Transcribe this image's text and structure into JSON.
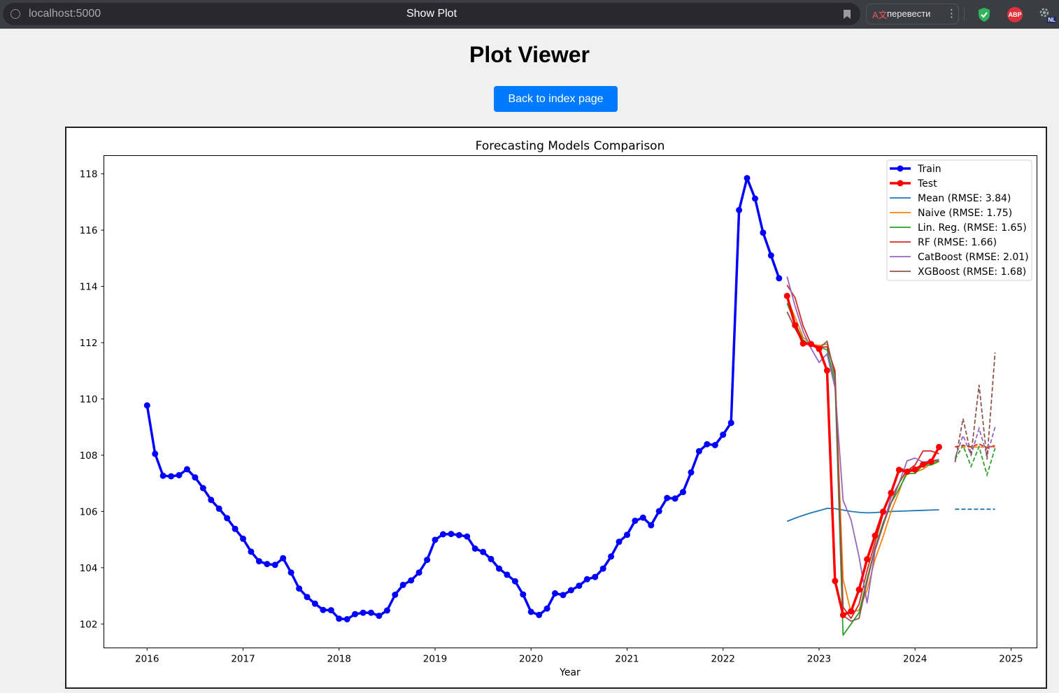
{
  "browser": {
    "url": "localhost:5000",
    "tab_title": "Show Plot",
    "translate_label": "перевести",
    "abp_label": "ABP",
    "ext_label": "NL"
  },
  "page": {
    "title": "Plot Viewer",
    "back_button": "Back to index page"
  },
  "chart_data": {
    "type": "line",
    "title": "Forecasting Models Comparison",
    "xlabel": "Year",
    "ylabel": "",
    "xlim": [
      2015.55,
      2025.27
    ],
    "ylim": [
      101.15,
      118.65
    ],
    "x_ticks": [
      2016,
      2017,
      2018,
      2019,
      2020,
      2021,
      2022,
      2023,
      2024,
      2025
    ],
    "y_ticks": [
      102,
      104,
      106,
      108,
      110,
      112,
      114,
      116,
      118
    ],
    "legend_position": "top-right",
    "grid": false,
    "series": [
      {
        "name": "Train",
        "color": "#0000ff",
        "style": "solid",
        "marker": "circle",
        "width": 3.5,
        "x_start": 2016.0,
        "x_step": 0.0833333,
        "values": [
          109.77,
          108.05,
          107.27,
          107.25,
          107.29,
          107.5,
          107.21,
          106.83,
          106.41,
          106.1,
          105.76,
          105.38,
          105.03,
          104.57,
          104.23,
          104.13,
          104.1,
          104.34,
          103.83,
          103.26,
          102.96,
          102.72,
          102.5,
          102.49,
          102.19,
          102.17,
          102.35,
          102.4,
          102.4,
          102.29,
          102.48,
          103.04,
          103.39,
          103.55,
          103.83,
          104.28,
          104.99,
          105.19,
          105.2,
          105.16,
          105.11,
          104.68,
          104.56,
          104.31,
          103.97,
          103.75,
          103.52,
          103.05,
          102.43,
          102.32,
          102.55,
          103.09,
          103.03,
          103.2,
          103.36,
          103.59,
          103.67,
          103.97,
          104.4,
          104.92,
          105.17,
          105.67,
          105.78,
          105.51,
          106.01,
          106.48,
          106.46,
          106.69,
          107.39,
          108.14,
          108.39,
          108.36,
          108.73,
          109.15,
          116.71,
          117.85,
          117.12,
          115.91,
          115.1,
          114.29
        ]
      },
      {
        "name": "Test",
        "color": "#ff0000",
        "style": "solid",
        "marker": "circle",
        "width": 3.5,
        "x_start": 2022.6667,
        "x_step": 0.0833333,
        "values": [
          113.66,
          112.62,
          111.97,
          111.95,
          111.78,
          111.01,
          103.53,
          102.32,
          102.45,
          103.22,
          104.3,
          105.14,
          105.99,
          106.66,
          107.48,
          107.41,
          107.49,
          107.67,
          107.77,
          108.29
        ]
      },
      {
        "name": "Mean (RMSE: 3.84)",
        "color": "#1f77b4",
        "style": "solid",
        "marker": "none",
        "width": 1.8,
        "x_start": 2022.6667,
        "x_step": 0.0833333,
        "values": [
          105.65,
          105.76,
          105.86,
          105.95,
          106.03,
          106.11,
          106.1,
          106.05,
          106.0,
          105.97,
          105.95,
          105.96,
          105.98,
          106.0,
          106.01,
          106.02,
          106.03,
          106.04,
          106.05,
          106.06
        ]
      },
      {
        "name": "Naive (RMSE: 1.75)",
        "color": "#ff7f0e",
        "style": "solid",
        "marker": "none",
        "width": 1.8,
        "x_start": 2022.6667,
        "x_step": 0.0833333,
        "values": [
          113.6,
          112.9,
          112.2,
          111.95,
          111.9,
          111.95,
          110.9,
          103.6,
          102.4,
          102.5,
          103.2,
          104.3,
          105.1,
          106.0,
          106.7,
          107.5,
          107.4,
          107.5,
          107.7,
          107.8
        ]
      },
      {
        "name": "Lin. Reg. (RMSE: 1.65)",
        "color": "#2ca02c",
        "style": "solid",
        "marker": "none",
        "width": 1.8,
        "x_start": 2022.6667,
        "x_step": 0.0833333,
        "values": [
          113.4,
          112.7,
          112.1,
          111.9,
          111.85,
          111.75,
          110.6,
          101.6,
          102.0,
          102.4,
          103.6,
          104.7,
          105.6,
          106.3,
          106.8,
          107.35,
          107.35,
          107.65,
          107.65,
          107.78
        ]
      },
      {
        "name": "RF (RMSE: 1.66)",
        "color": "#d62728",
        "style": "solid",
        "marker": "none",
        "width": 1.8,
        "x_start": 2022.6667,
        "x_step": 0.0833333,
        "values": [
          114.05,
          113.6,
          112.6,
          111.95,
          111.85,
          111.85,
          111.0,
          102.6,
          102.2,
          102.7,
          103.9,
          104.9,
          105.9,
          106.7,
          107.55,
          107.45,
          107.65,
          108.15,
          108.15,
          108.05
        ]
      },
      {
        "name": "CatBoost (RMSE: 2.01)",
        "color": "#9467bd",
        "style": "solid",
        "marker": "none",
        "width": 1.8,
        "x_start": 2022.6667,
        "x_step": 0.0833333,
        "values": [
          114.35,
          113.3,
          112.4,
          111.8,
          111.3,
          111.6,
          110.4,
          106.4,
          105.7,
          104.4,
          102.75,
          104.6,
          105.5,
          106.5,
          107.0,
          107.8,
          107.9,
          107.75,
          107.8,
          107.85
        ]
      },
      {
        "name": "XGBoost (RMSE: 1.68)",
        "color": "#8c564b",
        "style": "solid",
        "marker": "none",
        "width": 1.8,
        "x_start": 2022.6667,
        "x_step": 0.0833333,
        "values": [
          113.1,
          112.5,
          112.0,
          111.9,
          111.8,
          112.05,
          110.8,
          102.3,
          102.1,
          102.2,
          103.5,
          104.7,
          105.5,
          106.3,
          107.0,
          107.5,
          107.5,
          107.7,
          107.8,
          107.8
        ]
      }
    ],
    "forecasts": [
      {
        "series": "Mean (RMSE: 3.84)",
        "color": "#1f77b4",
        "style": "dashed",
        "x_start": 2024.4167,
        "x_step": 0.0833333,
        "values": [
          106.08,
          106.08,
          106.08,
          106.08,
          106.08,
          106.08
        ]
      },
      {
        "series": "Naive (RMSE: 1.75)",
        "color": "#ff7f0e",
        "style": "dashed",
        "x_start": 2024.4167,
        "x_step": 0.0833333,
        "values": [
          108.29,
          108.29,
          108.29,
          108.29,
          108.29,
          108.29
        ]
      },
      {
        "series": "Lin. Reg. (RMSE: 1.65)",
        "color": "#2ca02c",
        "style": "dashed",
        "x_start": 2024.4167,
        "x_step": 0.0833333,
        "values": [
          107.85,
          108.35,
          107.6,
          108.3,
          107.3,
          108.25
        ]
      },
      {
        "series": "RF (RMSE: 1.66)",
        "color": "#d62728",
        "style": "dashed",
        "x_start": 2024.4167,
        "x_step": 0.0833333,
        "values": [
          108.3,
          108.35,
          108.3,
          108.4,
          108.25,
          108.35
        ]
      },
      {
        "series": "CatBoost (RMSE: 2.01)",
        "color": "#9467bd",
        "style": "dashed",
        "x_start": 2024.4167,
        "x_step": 0.0833333,
        "values": [
          107.9,
          108.7,
          108.0,
          108.95,
          108.0,
          109.0
        ]
      },
      {
        "series": "XGBoost (RMSE: 1.68)",
        "color": "#8c564b",
        "style": "dashed",
        "x_start": 2024.4167,
        "x_step": 0.0833333,
        "values": [
          107.75,
          109.3,
          108.0,
          110.5,
          107.85,
          111.65
        ]
      }
    ]
  }
}
